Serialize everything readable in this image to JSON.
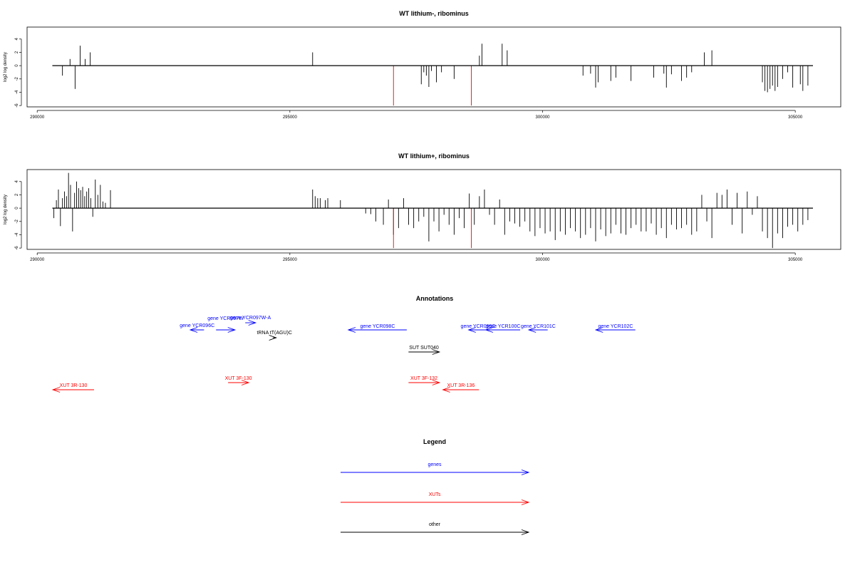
{
  "colors": {
    "black": "#000000",
    "red": "#ff0000",
    "blue": "#0000ff",
    "frame": "#000000"
  },
  "chart_data": [
    {
      "type": "bar",
      "title": "WT lithium-, ribominus",
      "ylabel": "log2 log density",
      "xlim": [
        289800,
        305900
      ],
      "ylim": [
        -6.2,
        5.8
      ],
      "x_ticks": [
        290000,
        295000,
        300000,
        305000
      ],
      "x_tick_labels": [
        "290000",
        "295000",
        "300000",
        "305000"
      ],
      "y_ticks": [
        -6,
        -4,
        -2,
        0,
        2,
        4
      ],
      "y_tick_labels": [
        "-6",
        "-4",
        "-2",
        "0",
        "2",
        "4"
      ],
      "baseline": {
        "x": [
          290300,
          305350
        ],
        "y": 0
      },
      "grid": false,
      "series": [
        {
          "color": "black",
          "x": [
            290500,
            290650,
            290750,
            290850,
            290950,
            291050,
            295450,
            297600,
            297650,
            297700,
            297750,
            297800,
            297900,
            298000,
            298250,
            298750,
            298800,
            299200,
            299300,
            300800,
            300950,
            301050,
            301100,
            301350,
            301450,
            301750,
            302200,
            302400,
            302450,
            302550,
            302750,
            302850,
            302950,
            303200,
            303350,
            304350,
            304400,
            304450,
            304500,
            304550,
            304600,
            304650,
            304750,
            304850,
            304950,
            305100,
            305150,
            305250
          ],
          "values": [
            -1.5,
            1.0,
            -3.5,
            3.0,
            1.0,
            2.0,
            2.0,
            -2.8,
            -1.0,
            -1.5,
            -3.2,
            -0.8,
            -2.5,
            -1.0,
            -2.0,
            1.5,
            3.3,
            3.3,
            2.3,
            -1.5,
            -1.2,
            -3.3,
            -2.5,
            -2.3,
            -1.8,
            -2.3,
            -1.8,
            -1.2,
            -3.3,
            -1.3,
            -2.3,
            -1.8,
            -1.0,
            2.0,
            2.3,
            -2.5,
            -3.8,
            -4.0,
            -3.5,
            -3.0,
            -3.8,
            -3.2,
            -2.0,
            -1.0,
            -3.3,
            -2.8,
            -3.8,
            -3.0
          ]
        },
        {
          "color": "red",
          "x": [
            297050,
            298590
          ],
          "values": [
            -6.0,
            -6.0
          ]
        }
      ]
    },
    {
      "type": "bar",
      "title": "WT lithium+, ribominus",
      "ylabel": "log2 log density",
      "xlim": [
        289800,
        305900
      ],
      "ylim": [
        -6.2,
        5.8
      ],
      "x_ticks": [
        290000,
        295000,
        300000,
        305000
      ],
      "x_tick_labels": [
        "290000",
        "295000",
        "300000",
        "305000"
      ],
      "y_ticks": [
        -6,
        -4,
        -2,
        0,
        2,
        4
      ],
      "y_tick_labels": [
        "-6",
        "-4",
        "-2",
        "0",
        "2",
        "4"
      ],
      "baseline": {
        "x": [
          290300,
          305350
        ],
        "y": 0
      },
      "grid": false,
      "series": [
        {
          "color": "black",
          "x": [
            290330,
            290380,
            290420,
            290460,
            290500,
            290540,
            290580,
            290620,
            290660,
            290700,
            290740,
            290780,
            290820,
            290860,
            290900,
            290940,
            290980,
            291020,
            291060,
            291100,
            291150,
            291200,
            291250,
            291300,
            291350,
            291450,
            295450,
            295500,
            295550,
            295600,
            295700,
            295750,
            296000,
            296500,
            296600,
            296700,
            296850,
            296950,
            297050,
            297150,
            297250,
            297350,
            297450,
            297550,
            297650,
            297750,
            297850,
            297950,
            298050,
            298150,
            298250,
            298350,
            298450,
            298550,
            298650,
            298750,
            298850,
            298950,
            299050,
            299150,
            299250,
            299350,
            299450,
            299550,
            299650,
            299750,
            299850,
            299950,
            300050,
            300150,
            300250,
            300350,
            300450,
            300550,
            300650,
            300750,
            300850,
            300950,
            301050,
            301150,
            301250,
            301350,
            301450,
            301550,
            301650,
            301750,
            301850,
            301950,
            302050,
            302150,
            302250,
            302350,
            302450,
            302550,
            302650,
            302750,
            302850,
            302950,
            303050,
            303150,
            303250,
            303350,
            303450,
            303550,
            303650,
            303750,
            303850,
            303950,
            304050,
            304150,
            304250,
            304350,
            304450,
            304550,
            304650,
            304750,
            304850,
            304950,
            305050,
            305150,
            305250
          ],
          "values": [
            -1.5,
            1.2,
            2.8,
            -2.7,
            1.5,
            2.5,
            1.8,
            5.3,
            3.5,
            -3.5,
            2.3,
            4.0,
            3.0,
            2.7,
            3.2,
            1.8,
            2.5,
            3.0,
            1.5,
            -1.3,
            4.3,
            2.0,
            3.5,
            1.0,
            0.8,
            2.7,
            2.8,
            1.8,
            1.5,
            1.5,
            1.2,
            1.5,
            1.2,
            -0.8,
            -0.9,
            -2.0,
            -2.5,
            1.3,
            -4.0,
            -3.0,
            1.5,
            -2.5,
            -3.0,
            -2.0,
            -1.3,
            -5.0,
            -2.0,
            -3.5,
            -1.0,
            -2.5,
            -4.0,
            -1.5,
            -3.0,
            2.2,
            -2.5,
            1.8,
            2.8,
            -1.0,
            -2.5,
            1.3,
            -4.0,
            -2.0,
            -2.3,
            -2.8,
            -2.0,
            -3.5,
            -4.2,
            -3.0,
            -3.8,
            -3.5,
            -4.8,
            -3.5,
            -4.0,
            -3.0,
            -3.5,
            -4.5,
            -4.0,
            -3.0,
            -5.0,
            -3.2,
            -4.2,
            -3.8,
            -2.5,
            -3.8,
            -4.0,
            -3.0,
            -2.5,
            -3.5,
            -3.5,
            -2.3,
            -4.0,
            -3.0,
            -4.5,
            -2.5,
            -3.2,
            -3.0,
            -2.5,
            -4.0,
            -3.5,
            2.0,
            -2.0,
            -4.5,
            2.3,
            2.0,
            2.8,
            -2.5,
            2.3,
            -3.8,
            2.5,
            -1.0,
            1.8,
            -3.5,
            -4.5,
            -6.0,
            -3.8,
            -4.5,
            -2.8,
            -2.5,
            -3.5,
            -2.5,
            -1.8
          ]
        },
        {
          "color": "red",
          "x": [
            297050,
            298590
          ],
          "values": [
            -6.0,
            -6.0
          ]
        }
      ]
    }
  ],
  "annotations": {
    "title": "Annotations",
    "items": [
      {
        "label": "gene YCR096C",
        "color": "blue",
        "dir": "left",
        "x": [
          294300,
          294700
        ]
      },
      {
        "label": "gene YCR097W",
        "color": "blue",
        "dir": "right",
        "x": [
          295050,
          295600
        ]
      },
      {
        "label": "gene YCR097W-A",
        "color": "blue",
        "dir": "right",
        "x": [
          295900,
          296200
        ]
      },
      {
        "label": "tRNA tT(AGU)C",
        "color": "black",
        "dir": "right",
        "x": [
          296700,
          296800
        ]
      },
      {
        "label": "gene YCR098C",
        "color": "blue",
        "dir": "left",
        "x": [
          298900,
          300600
        ]
      },
      {
        "label": "SUT SUT040",
        "color": "black",
        "dir": "right",
        "x": [
          300650,
          301550
        ]
      },
      {
        "label": "gene YCR099C",
        "color": "blue",
        "dir": "left",
        "x": [
          302400,
          302950
        ]
      },
      {
        "label": "gene YCR100C",
        "color": "blue",
        "dir": "left",
        "x": [
          302900,
          303900
        ]
      },
      {
        "label": "gene YCR101C",
        "color": "blue",
        "dir": "left",
        "x": [
          304150,
          304700
        ]
      },
      {
        "label": "gene YCR102C",
        "color": "blue",
        "dir": "left",
        "x": [
          306100,
          307250
        ]
      },
      {
        "label": "XUT 3R-130",
        "color": "red",
        "dir": "left",
        "x": [
          290300,
          291500
        ]
      },
      {
        "label": "XUT 3F-130",
        "color": "red",
        "dir": "right",
        "x": [
          295400,
          296000
        ]
      },
      {
        "label": "XUT 3F-132",
        "color": "red",
        "dir": "right",
        "x": [
          300650,
          301550
        ]
      },
      {
        "label": "XUT 3R-136",
        "color": "red",
        "dir": "left",
        "x": [
          301650,
          302700
        ]
      }
    ]
  },
  "legend": {
    "title": "Legend",
    "entries": [
      {
        "label": "genes",
        "color": "blue"
      },
      {
        "label": "XUTs",
        "color": "red"
      },
      {
        "label": "other",
        "color": "black"
      }
    ]
  }
}
